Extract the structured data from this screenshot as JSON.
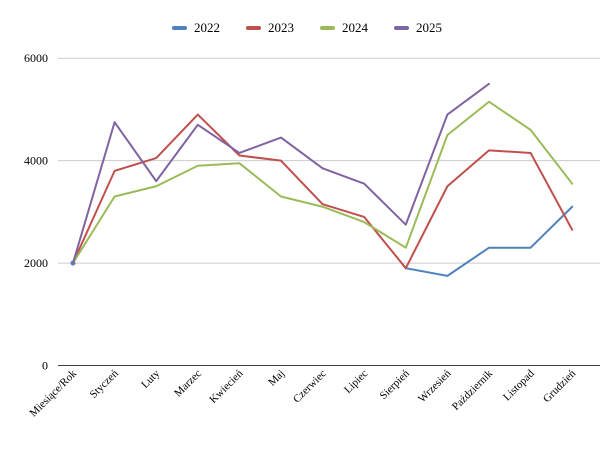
{
  "chart_data": {
    "type": "line",
    "title": "",
    "xlabel": "",
    "ylabel": "",
    "legend_position": "top",
    "grid": true,
    "ylim": [
      0,
      6000
    ],
    "y_ticks": [
      0,
      2000,
      4000,
      6000
    ],
    "categories": [
      "Miesiące/Rok",
      "Styczeń",
      "Luty",
      "Marzec",
      "Kwiecień",
      "Maj",
      "Czerwiec",
      "Lipiec",
      "Sierpień",
      "Wrzesień",
      "Październik",
      "Listopad",
      "Grudzień"
    ],
    "series": [
      {
        "name": "2022",
        "color": "#4f81bd",
        "values": [
          2000,
          null,
          null,
          null,
          null,
          null,
          null,
          null,
          1900,
          1750,
          2300,
          2300,
          3100
        ]
      },
      {
        "name": "2023",
        "color": "#c0504d",
        "values": [
          2000,
          3800,
          4050,
          4900,
          4100,
          4000,
          3150,
          2900,
          1900,
          3500,
          4200,
          4150,
          2650
        ]
      },
      {
        "name": "2024",
        "color": "#9bbb59",
        "values": [
          2000,
          3300,
          3500,
          3900,
          3950,
          3300,
          3100,
          2800,
          2300,
          4500,
          5150,
          4600,
          3550
        ]
      },
      {
        "name": "2025",
        "color": "#8064a2",
        "values": [
          2000,
          4750,
          3600,
          4700,
          4150,
          4450,
          3850,
          3550,
          2750,
          4900,
          5500,
          null,
          null
        ]
      }
    ],
    "colors": {
      "gridline": "#cccccc",
      "axis_line": "#444444",
      "text": "#000000"
    }
  }
}
